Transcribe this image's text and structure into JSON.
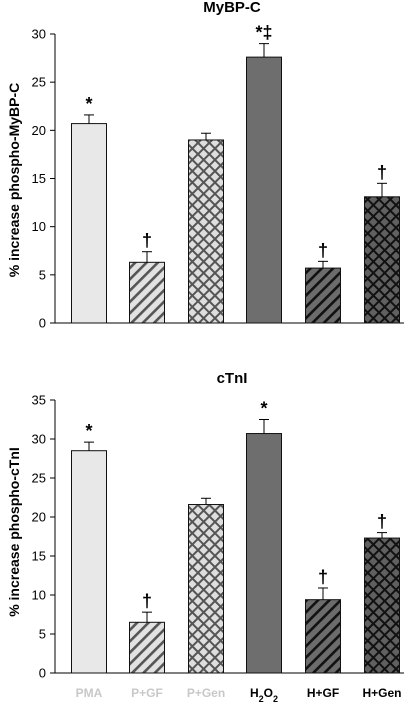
{
  "chart_data": [
    {
      "type": "bar",
      "title": "MyBP-C",
      "ylabel": "% increase phospho-MyBP-C",
      "ylim": [
        0,
        30
      ],
      "yticks": [
        0,
        5,
        10,
        15,
        20,
        25,
        30
      ],
      "categories": [
        "PMA",
        "P+GF",
        "P+Gen",
        "H2O2",
        "H+GF",
        "H+Gen"
      ],
      "values": [
        20.7,
        6.3,
        19.0,
        27.6,
        5.7,
        13.1
      ],
      "errors": [
        0.9,
        1.1,
        0.7,
        1.4,
        0.7,
        1.4
      ],
      "annotations": [
        "*",
        "†",
        "",
        "*‡",
        "†",
        "†"
      ]
    },
    {
      "type": "bar",
      "title": "cTnI",
      "ylabel": "% increase phospho-cTnI",
      "ylim": [
        0,
        35
      ],
      "yticks": [
        0,
        5,
        10,
        15,
        20,
        25,
        30,
        35
      ],
      "categories": [
        "PMA",
        "P+GF",
        "P+Gen",
        "H2O2",
        "H+GF",
        "H+Gen"
      ],
      "values": [
        28.5,
        6.5,
        21.6,
        30.7,
        9.4,
        17.3
      ],
      "errors": [
        1.1,
        1.3,
        0.8,
        1.8,
        1.5,
        0.7
      ],
      "annotations": [
        "*",
        "†",
        "",
        "*",
        "†",
        "†"
      ]
    }
  ],
  "styles": {
    "bar_fills": [
      "#e8e8e8",
      "#d4d4d4",
      "#d8d8d8",
      "#6e6e6e",
      "#6a6a6a",
      "#555555"
    ],
    "patterns": [
      "solid",
      "diagonal",
      "crosshatch",
      "solid",
      "diagonal",
      "crosshatch"
    ],
    "label_colors": [
      "#c8c8c8",
      "#c8c8c8",
      "#c8c8c8",
      "#000000",
      "#000000",
      "#000000"
    ]
  }
}
